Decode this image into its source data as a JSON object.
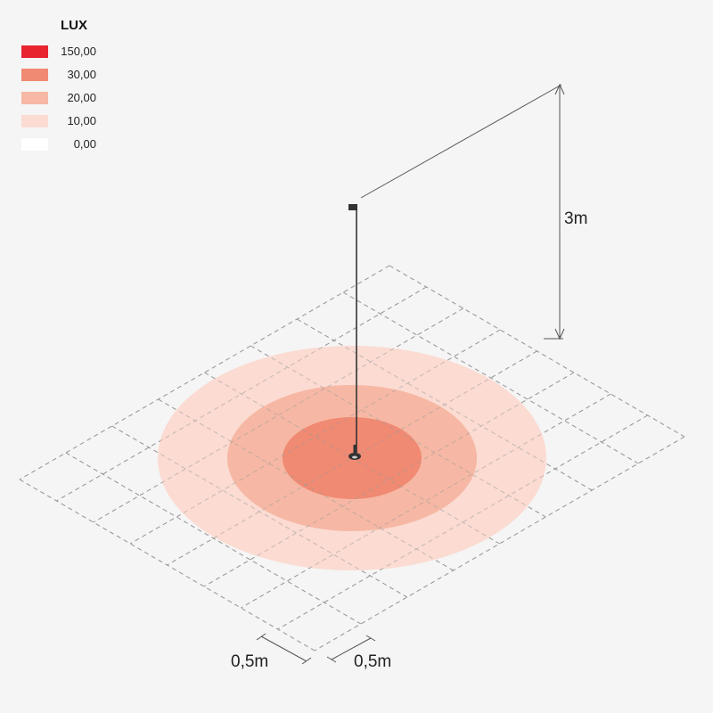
{
  "legend": {
    "title": "LUX",
    "items": [
      {
        "value": "150,00",
        "color": "#e8242f"
      },
      {
        "value": "30,00",
        "color": "#f08a72"
      },
      {
        "value": "20,00",
        "color": "#f6b8a4"
      },
      {
        "value": "10,00",
        "color": "#fbdbd2"
      },
      {
        "value": "0,00",
        "color": "#ffffff"
      }
    ]
  },
  "zones": [
    {
      "lux": 10,
      "color": "#fbdbd2"
    },
    {
      "lux": 20,
      "color": "#f6b8a4"
    },
    {
      "lux": 30,
      "color": "#f08a72"
    }
  ],
  "dimensions": {
    "height_label": "3m",
    "grid_x_label": "0,5m",
    "grid_y_label": "0,5m"
  }
}
